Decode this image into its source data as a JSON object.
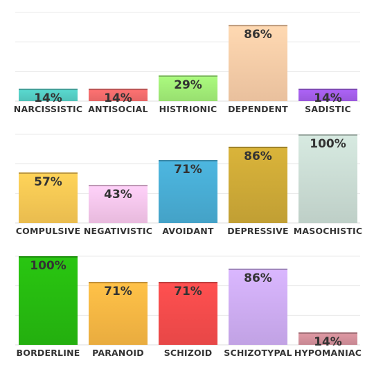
{
  "chart_data": [
    {
      "type": "bar",
      "categories": [
        "NARCISSISTIC",
        "ANTISOCIAL",
        "HISTRIONIC",
        "DEPENDENT",
        "SADISTIC"
      ],
      "values": [
        14,
        14,
        29,
        86,
        14
      ],
      "labels": [
        "14%",
        "14%",
        "29%",
        "86%",
        "14%"
      ],
      "colors": [
        "#57d3c9",
        "#fa6f6f",
        "#a5f27a",
        "#fdd1ab",
        "#a760ef"
      ],
      "ylim": [
        0,
        100
      ],
      "grid": true
    },
    {
      "type": "bar",
      "categories": [
        "COMPULSIVE",
        "NEGATIVISTIC",
        "AVOIDANT",
        "DEPRESSIVE",
        "MASOCHISTIC"
      ],
      "values": [
        57,
        43,
        71,
        86,
        100
      ],
      "labels": [
        "57%",
        "43%",
        "71%",
        "86%",
        "100%"
      ],
      "colors": [
        "#fdcc56",
        "#fccaf0",
        "#4ab0d8",
        "#d2ad38",
        "#cfe1d8"
      ],
      "ylim": [
        0,
        100
      ],
      "grid": true
    },
    {
      "type": "bar",
      "categories": [
        "BORDERLINE",
        "PARANOID",
        "SCHIZOID",
        "SCHIZOTYPAL",
        "HYPOMANIAC"
      ],
      "values": [
        100,
        71,
        71,
        86,
        14
      ],
      "labels": [
        "100%",
        "71%",
        "71%",
        "86%",
        "14%"
      ],
      "colors": [
        "#27be10",
        "#fdbb45",
        "#fb4d4d",
        "#d2b0f8",
        "#d8949f"
      ],
      "ylim": [
        0,
        100
      ],
      "grid": true
    }
  ]
}
